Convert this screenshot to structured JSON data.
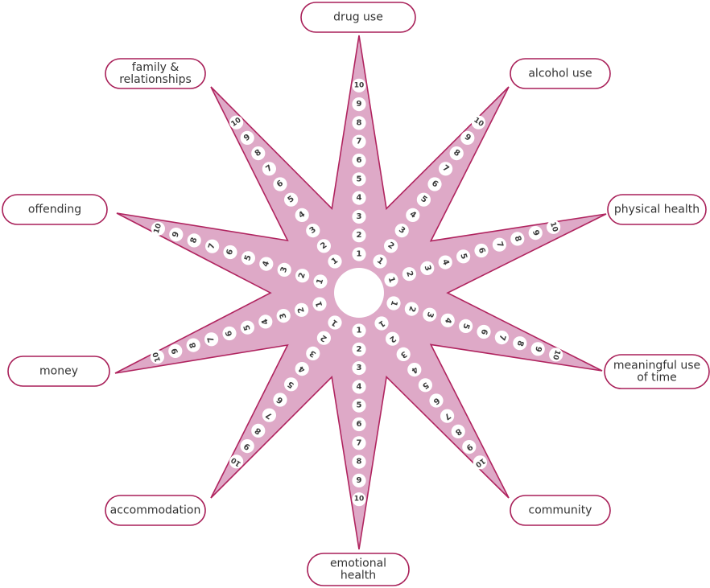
{
  "scale": {
    "min": 1,
    "max": 10,
    "values": [
      "1",
      "2",
      "3",
      "4",
      "5",
      "6",
      "7",
      "8",
      "9",
      "10"
    ]
  },
  "colors": {
    "star_fill": "#dea9c7",
    "star_outline": "#b0245f",
    "label_border": "#a81f58",
    "text": "#333333",
    "pip_fill": "#ffffff"
  },
  "domains": [
    {
      "id": "drug-use",
      "label": [
        "drug use"
      ]
    },
    {
      "id": "alcohol-use",
      "label": [
        "alcohol use"
      ]
    },
    {
      "id": "physical-health",
      "label": [
        "physical health"
      ]
    },
    {
      "id": "meaningful-use-of-time",
      "label": [
        "meaningful use",
        "of time"
      ]
    },
    {
      "id": "community",
      "label": [
        "community"
      ]
    },
    {
      "id": "emotional-health",
      "label": [
        "emotional",
        "health"
      ]
    },
    {
      "id": "accommodation",
      "label": [
        "accommodation"
      ]
    },
    {
      "id": "money",
      "label": [
        "money"
      ]
    },
    {
      "id": "offending",
      "label": [
        "offending"
      ]
    },
    {
      "id": "family-relationships",
      "label": [
        "family &",
        "relationships"
      ]
    }
  ]
}
